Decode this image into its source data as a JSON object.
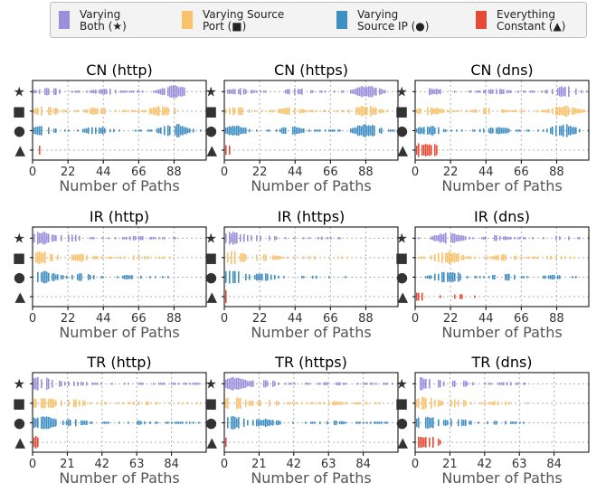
{
  "legend": {
    "items": [
      {
        "line1": "Varying",
        "line2": "Both (★)",
        "color": "#9b8fdc"
      },
      {
        "line1": "Varying Source",
        "line2": "Port (■)",
        "color": "#f9c26b"
      },
      {
        "line1": "Varying",
        "line2": "Source IP (●)",
        "color": "#3f8fc4"
      },
      {
        "line1": "Everything",
        "line2": "Constant (▲)",
        "color": "#e34b36"
      }
    ]
  },
  "chart_data": [
    {
      "type": "scatter",
      "title": "CN (http)",
      "xlabel": "Number of Paths",
      "xticks": [
        "0",
        "22",
        "44",
        "66",
        "88"
      ],
      "xlim": [
        0,
        108
      ],
      "ylabels": [
        "★",
        "■",
        "●",
        "▲"
      ],
      "grid": true,
      "series": [
        {
          "name": "Varying Both (★)",
          "color": "#9b8fdc",
          "range": [
            0,
            94
          ],
          "peaks": [
            [
              10,
              0.55
            ],
            [
              45,
              0.45
            ],
            [
              88,
              0.9
            ]
          ],
          "density": 0.9
        },
        {
          "name": "Varying Source Port (■)",
          "color": "#f9c26b",
          "range": [
            0,
            92
          ],
          "peaks": [
            [
              8,
              0.7
            ],
            [
              40,
              0.55
            ],
            [
              80,
              0.8
            ]
          ],
          "density": 0.9
        },
        {
          "name": "Varying Source IP (●)",
          "color": "#3f8fc4",
          "range": [
            0,
            108
          ],
          "peaks": [
            [
              5,
              0.7
            ],
            [
              40,
              0.6
            ],
            [
              88,
              1.0
            ]
          ],
          "density": 0.92
        },
        {
          "name": "Everything Constant (▲)",
          "color": "#e34b36",
          "range": [
            0,
            6
          ],
          "peaks": [
            [
              1,
              1.0
            ]
          ],
          "density": 0.5
        }
      ]
    },
    {
      "type": "scatter",
      "title": "CN (https)",
      "xlabel": "Number of Paths",
      "xticks": [
        "0",
        "22",
        "44",
        "66",
        "88"
      ],
      "xlim": [
        0,
        108
      ],
      "ylabels": [
        "★",
        "■",
        "●",
        "▲"
      ],
      "grid": true,
      "series": [
        {
          "name": "Varying Both (★)",
          "color": "#9b8fdc",
          "range": [
            0,
            104
          ],
          "peaks": [
            [
              8,
              0.5
            ],
            [
              45,
              0.5
            ],
            [
              88,
              0.9
            ]
          ],
          "density": 0.85
        },
        {
          "name": "Varying Source Port (■)",
          "color": "#f9c26b",
          "range": [
            0,
            108
          ],
          "peaks": [
            [
              8,
              0.6
            ],
            [
              40,
              0.55
            ],
            [
              88,
              0.8
            ]
          ],
          "density": 0.9
        },
        {
          "name": "Varying Source IP (●)",
          "color": "#3f8fc4",
          "range": [
            0,
            108
          ],
          "peaks": [
            [
              5,
              0.8
            ],
            [
              42,
              0.6
            ],
            [
              88,
              1.0
            ]
          ],
          "density": 0.92
        },
        {
          "name": "Everything Constant (▲)",
          "color": "#e34b36",
          "range": [
            0,
            3
          ],
          "peaks": [
            [
              1,
              1.0
            ]
          ],
          "density": 0.5
        }
      ]
    },
    {
      "type": "scatter",
      "title": "CN (dns)",
      "xlabel": "Number of Paths",
      "xticks": [
        "0",
        "22",
        "44",
        "66",
        "88"
      ],
      "xlim": [
        0,
        108
      ],
      "ylabels": [
        "★",
        "■",
        "●",
        "▲"
      ],
      "grid": true,
      "series": [
        {
          "name": "Varying Both (★)",
          "color": "#9b8fdc",
          "range": [
            0,
            108
          ],
          "peaks": [
            [
              10,
              0.5
            ],
            [
              50,
              0.4
            ],
            [
              92,
              0.85
            ]
          ],
          "density": 0.85
        },
        {
          "name": "Varying Source Port (■)",
          "color": "#f9c26b",
          "range": [
            0,
            108
          ],
          "peaks": [
            [
              8,
              0.6
            ],
            [
              45,
              0.5
            ],
            [
              92,
              0.8
            ]
          ],
          "density": 0.9
        },
        {
          "name": "Varying Source IP (●)",
          "color": "#3f8fc4",
          "range": [
            0,
            108
          ],
          "peaks": [
            [
              8,
              0.7
            ],
            [
              50,
              0.55
            ],
            [
              92,
              1.0
            ]
          ],
          "density": 0.92
        },
        {
          "name": "Everything Constant (▲)",
          "color": "#e34b36",
          "range": [
            0,
            16
          ],
          "peaks": [
            [
              2,
              1.0
            ],
            [
              8,
              0.6
            ]
          ],
          "density": 0.8
        }
      ]
    },
    {
      "type": "scatter",
      "title": "IR (http)",
      "xlabel": "Number of Paths",
      "xticks": [
        "0",
        "22",
        "44",
        "66",
        "88"
      ],
      "xlim": [
        0,
        108
      ],
      "ylabels": [
        "★",
        "■",
        "●",
        "▲"
      ],
      "grid": true,
      "series": [
        {
          "name": "Varying Both (★)",
          "color": "#9b8fdc",
          "range": [
            0,
            90
          ],
          "peaks": [
            [
              5,
              0.95
            ],
            [
              25,
              0.5
            ],
            [
              65,
              0.35
            ]
          ],
          "density": 0.75
        },
        {
          "name": "Varying Source Port (■)",
          "color": "#f9c26b",
          "range": [
            0,
            88
          ],
          "peaks": [
            [
              5,
              1.0
            ],
            [
              30,
              0.6
            ],
            [
              65,
              0.35
            ]
          ],
          "density": 0.8
        },
        {
          "name": "Varying Source IP (●)",
          "color": "#3f8fc4",
          "range": [
            0,
            86
          ],
          "peaks": [
            [
              5,
              1.0
            ],
            [
              30,
              0.55
            ],
            [
              60,
              0.3
            ]
          ],
          "density": 0.8
        },
        {
          "name": "Everything Constant (▲)",
          "color": "#e34b36",
          "range": [
            0,
            2
          ],
          "peaks": [
            [
              1,
              1.0
            ]
          ],
          "density": 0.5
        }
      ]
    },
    {
      "type": "scatter",
      "title": "IR (https)",
      "xlabel": "Number of Paths",
      "xticks": [
        "0",
        "22",
        "44",
        "66",
        "88"
      ],
      "xlim": [
        0,
        108
      ],
      "ylabels": [
        "★",
        "■",
        "●",
        "▲"
      ],
      "grid": true,
      "series": [
        {
          "name": "Varying Both (★)",
          "color": "#9b8fdc",
          "range": [
            0,
            78
          ],
          "peaks": [
            [
              5,
              0.95
            ],
            [
              25,
              0.4
            ],
            [
              60,
              0.2
            ]
          ],
          "density": 0.55
        },
        {
          "name": "Varying Source Port (■)",
          "color": "#f9c26b",
          "range": [
            0,
            76
          ],
          "peaks": [
            [
              5,
              1.0
            ],
            [
              25,
              0.5
            ],
            [
              55,
              0.25
            ]
          ],
          "density": 0.6
        },
        {
          "name": "Varying Source IP (●)",
          "color": "#3f8fc4",
          "range": [
            0,
            76
          ],
          "peaks": [
            [
              5,
              1.0
            ],
            [
              25,
              0.5
            ],
            [
              55,
              0.25
            ]
          ],
          "density": 0.6
        },
        {
          "name": "Everything Constant (▲)",
          "color": "#e34b36",
          "range": [
            0,
            2
          ],
          "peaks": [
            [
              1,
              1.0
            ]
          ],
          "density": 0.5
        }
      ]
    },
    {
      "type": "scatter",
      "title": "IR (dns)",
      "xlabel": "Number of Paths",
      "xticks": [
        "0",
        "22",
        "44",
        "66",
        "88"
      ],
      "xlim": [
        0,
        108
      ],
      "ylabels": [
        "★",
        "■",
        "●",
        "▲"
      ],
      "grid": true,
      "series": [
        {
          "name": "Varying Both (★)",
          "color": "#9b8fdc",
          "range": [
            0,
            108
          ],
          "peaks": [
            [
              20,
              0.9
            ],
            [
              50,
              0.4
            ],
            [
              90,
              0.3
            ]
          ],
          "density": 0.75
        },
        {
          "name": "Varying Source Port (■)",
          "color": "#f9c26b",
          "range": [
            0,
            100
          ],
          "peaks": [
            [
              20,
              1.0
            ],
            [
              55,
              0.5
            ],
            [
              85,
              0.3
            ]
          ],
          "density": 0.8
        },
        {
          "name": "Varying Source IP (●)",
          "color": "#3f8fc4",
          "range": [
            0,
            100
          ],
          "peaks": [
            [
              20,
              1.0
            ],
            [
              55,
              0.5
            ],
            [
              85,
              0.3
            ]
          ],
          "density": 0.8
        },
        {
          "name": "Everything Constant (▲)",
          "color": "#e34b36",
          "range": [
            0,
            40
          ],
          "peaks": [
            [
              2,
              0.7
            ],
            [
              25,
              0.35
            ]
          ],
          "density": 0.45
        }
      ]
    },
    {
      "type": "scatter",
      "title": "TR (http)",
      "xlabel": "Number of Paths",
      "xticks": [
        "0",
        "21",
        "42",
        "63",
        "84"
      ],
      "xlim": [
        0,
        105
      ],
      "ylabels": [
        "★",
        "■",
        "●",
        "▲"
      ],
      "grid": true,
      "series": [
        {
          "name": "Varying Both (★)",
          "color": "#9b8fdc",
          "range": [
            0,
            104
          ],
          "peaks": [
            [
              5,
              1.0
            ],
            [
              25,
              0.4
            ],
            [
              70,
              0.2
            ]
          ],
          "density": 0.7
        },
        {
          "name": "Varying Source Port (■)",
          "color": "#f9c26b",
          "range": [
            0,
            102
          ],
          "peaks": [
            [
              5,
              1.0
            ],
            [
              25,
              0.55
            ],
            [
              65,
              0.3
            ]
          ],
          "density": 0.75
        },
        {
          "name": "Varying Source IP (●)",
          "color": "#3f8fc4",
          "range": [
            0,
            104
          ],
          "peaks": [
            [
              5,
              1.0
            ],
            [
              25,
              0.55
            ],
            [
              65,
              0.3
            ]
          ],
          "density": 0.75
        },
        {
          "name": "Everything Constant (▲)",
          "color": "#e34b36",
          "range": [
            0,
            4
          ],
          "peaks": [
            [
              1,
              1.0
            ]
          ],
          "density": 0.5
        }
      ]
    },
    {
      "type": "scatter",
      "title": "TR (https)",
      "xlabel": "Number of Paths",
      "xticks": [
        "0",
        "21",
        "42",
        "63",
        "84"
      ],
      "xlim": [
        0,
        105
      ],
      "ylabels": [
        "★",
        "■",
        "●",
        "▲"
      ],
      "grid": true,
      "series": [
        {
          "name": "Varying Both (★)",
          "color": "#9b8fdc",
          "range": [
            0,
            102
          ],
          "peaks": [
            [
              5,
              1.0
            ],
            [
              25,
              0.5
            ],
            [
              65,
              0.25
            ]
          ],
          "density": 0.75
        },
        {
          "name": "Varying Source Port (■)",
          "color": "#f9c26b",
          "range": [
            0,
            100
          ],
          "peaks": [
            [
              5,
              1.0
            ],
            [
              25,
              0.55
            ],
            [
              65,
              0.3
            ]
          ],
          "density": 0.75
        },
        {
          "name": "Varying Source IP (●)",
          "color": "#3f8fc4",
          "range": [
            0,
            100
          ],
          "peaks": [
            [
              5,
              1.0
            ],
            [
              25,
              0.55
            ],
            [
              65,
              0.3
            ]
          ],
          "density": 0.75
        },
        {
          "name": "Everything Constant (▲)",
          "color": "#e34b36",
          "range": [
            0,
            2
          ],
          "peaks": [
            [
              1,
              1.0
            ]
          ],
          "density": 0.5
        }
      ]
    },
    {
      "type": "scatter",
      "title": "TR (dns)",
      "xlabel": "Number of Paths",
      "xticks": [
        "0",
        "21",
        "42",
        "63",
        "84"
      ],
      "xlim": [
        0,
        105
      ],
      "ylabels": [
        "★",
        "■",
        "●",
        "▲"
      ],
      "grid": true,
      "series": [
        {
          "name": "Varying Both (★)",
          "color": "#9b8fdc",
          "range": [
            0,
            72
          ],
          "peaks": [
            [
              5,
              1.0
            ],
            [
              25,
              0.55
            ],
            [
              55,
              0.25
            ]
          ],
          "density": 0.75
        },
        {
          "name": "Varying Source Port (■)",
          "color": "#f9c26b",
          "range": [
            0,
            68
          ],
          "peaks": [
            [
              5,
              1.0
            ],
            [
              25,
              0.55
            ],
            [
              50,
              0.3
            ]
          ],
          "density": 0.75
        },
        {
          "name": "Varying Source IP (●)",
          "color": "#3f8fc4",
          "range": [
            0,
            68
          ],
          "peaks": [
            [
              5,
              1.0
            ],
            [
              25,
              0.55
            ],
            [
              50,
              0.3
            ]
          ],
          "density": 0.75
        },
        {
          "name": "Everything Constant (▲)",
          "color": "#e34b36",
          "range": [
            0,
            16
          ],
          "peaks": [
            [
              1,
              1.0
            ],
            [
              8,
              0.45
            ]
          ],
          "density": 0.7
        }
      ]
    }
  ]
}
